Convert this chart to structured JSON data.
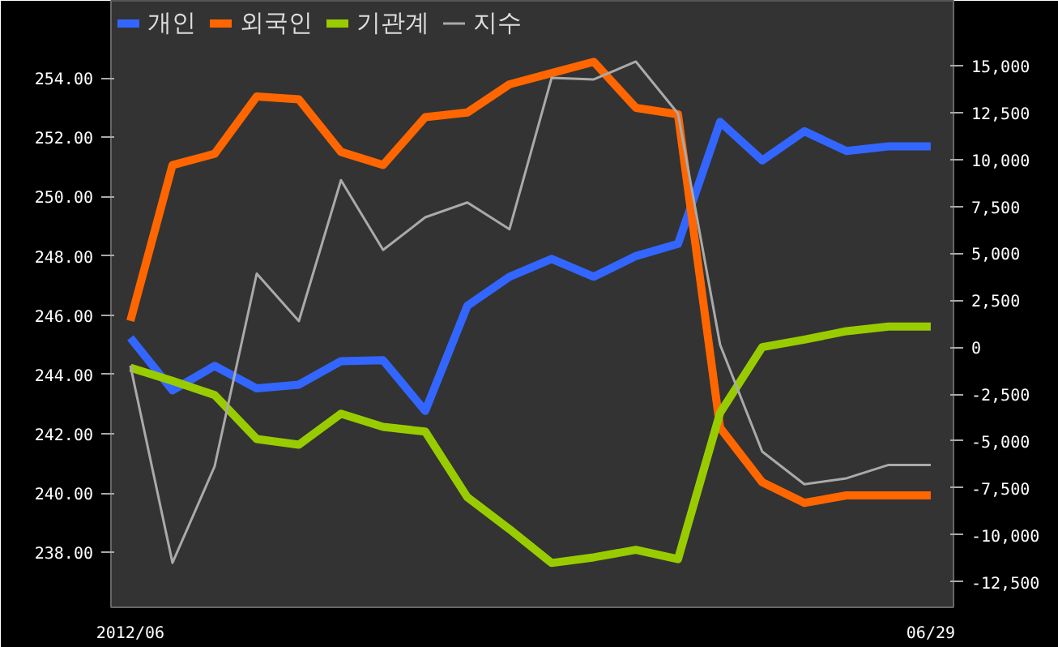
{
  "chart_data": {
    "type": "line",
    "categories": [
      "2012/06",
      null,
      null,
      null,
      null,
      null,
      null,
      null,
      null,
      null,
      null,
      null,
      null,
      null,
      null,
      null,
      null,
      null,
      null,
      "06/29"
    ],
    "series": [
      {
        "name": "개인",
        "color": "#3366ff",
        "axis": "y2",
        "values": [
          500,
          -2300,
          -1000,
          -2200,
          -2000,
          -750,
          -700,
          -3400,
          2200,
          3750,
          4700,
          3750,
          4850,
          5500,
          12000,
          9950,
          11500,
          10450,
          10700,
          10700
        ]
      },
      {
        "name": "외국인",
        "color": "#ff6600",
        "axis": "y2",
        "values": [
          1400,
          9700,
          10300,
          13350,
          13200,
          10400,
          9700,
          12250,
          12500,
          14000,
          14600,
          15200,
          12750,
          12400,
          -4300,
          -7200,
          -8300,
          -7900,
          -7900,
          -7900
        ]
      },
      {
        "name": "기관계",
        "color": "#99cc00",
        "axis": "y2",
        "values": [
          -1100,
          -1800,
          -2550,
          -4900,
          -5200,
          -3550,
          -4250,
          -4500,
          -8000,
          -9700,
          -11500,
          -11200,
          -10800,
          -11300,
          -3500,
          0,
          400,
          850,
          1100,
          1100
        ]
      },
      {
        "name": "지수",
        "color": "#aaaaaa",
        "axis": "y",
        "values": [
          244.3,
          237.65,
          240.9,
          247.4,
          245.8,
          250.55,
          248.2,
          249.3,
          249.8,
          248.9,
          254.0,
          253.95,
          254.55,
          252.8,
          245.0,
          241.4,
          240.3,
          240.5,
          240.95,
          240.95
        ]
      }
    ],
    "ylim": [
      236.15,
      256.6
    ],
    "yticks": [
      {
        "value": 238,
        "label": "238.00"
      },
      {
        "value": 240,
        "label": "240.00"
      },
      {
        "value": 242,
        "label": "242.00"
      },
      {
        "value": 244,
        "label": "244.00"
      },
      {
        "value": 246,
        "label": "246.00"
      },
      {
        "value": 248,
        "label": "248.00"
      },
      {
        "value": 250,
        "label": "250.00"
      },
      {
        "value": 252,
        "label": "252.00"
      },
      {
        "value": 254,
        "label": "254.00"
      }
    ],
    "y2lim": [
      -13860,
      18450
    ],
    "y2ticks": [
      {
        "value": -12500,
        "label": "-12,500"
      },
      {
        "value": -10000,
        "label": "-10,000"
      },
      {
        "value": -7500,
        "label": "-7,500"
      },
      {
        "value": -5000,
        "label": "-5,000"
      },
      {
        "value": -2500,
        "label": "-2,500"
      },
      0,
      {
        "value": 2500,
        "label": "2,500"
      },
      {
        "value": 5000,
        "label": "5,000"
      },
      {
        "value": 7500,
        "label": "7,500"
      },
      {
        "value": 10000,
        "label": "10,000"
      },
      {
        "value": 12500,
        "label": "12,500"
      },
      {
        "value": 15000,
        "label": "15,000"
      }
    ],
    "legend": "top left",
    "grid": false,
    "marker": "none",
    "line_style": "solid"
  }
}
